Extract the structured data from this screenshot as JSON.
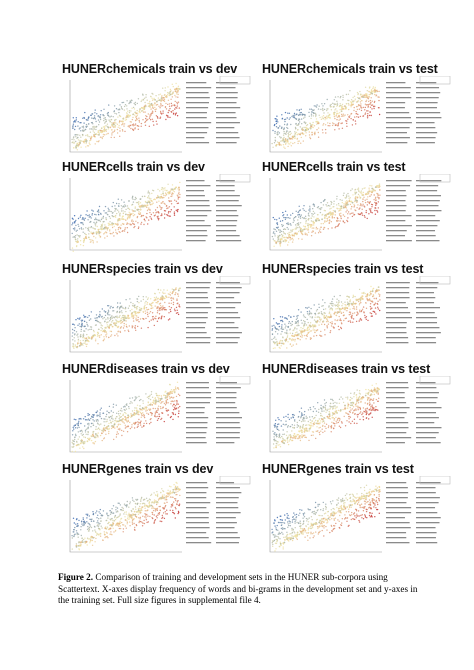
{
  "panels": [
    {
      "title": "HUNERchemicals train vs dev"
    },
    {
      "title": "HUNERchemicals train vs test"
    },
    {
      "title": "HUNERcells train vs dev"
    },
    {
      "title": "HUNERcells train vs test"
    },
    {
      "title": "HUNERspecies train vs dev"
    },
    {
      "title": "HUNERspecies train vs test"
    },
    {
      "title": "HUNERdiseases train vs dev"
    },
    {
      "title": "HUNERdiseases train vs test"
    },
    {
      "title": "HUNERgenes train vs dev"
    },
    {
      "title": "HUNERgenes train vs test"
    }
  ],
  "caption": {
    "label": "Figure 2.",
    "text": " Comparison of training and development sets in the HUNER sub-corpora using Scattertext. X-axes display frequency of words and bi-grams in the development set and y-axes in the training set. Full size figures in supplemental file 4."
  },
  "colors": {
    "blue": "#2b5fb0",
    "red": "#c0282d",
    "neutral": "#e8d27a"
  }
}
